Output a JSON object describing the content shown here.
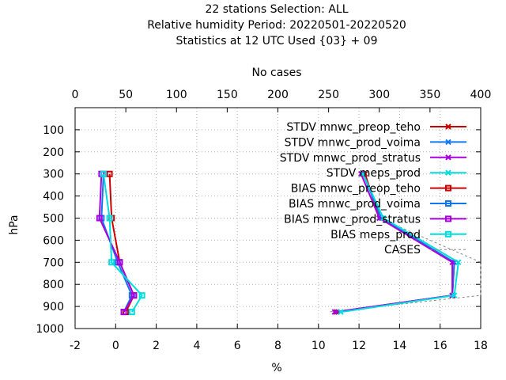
{
  "chart_data": {
    "type": "line",
    "title_lines": [
      "22 stations Selection: ALL",
      "Relative humidity  Period: 20220501-20220520",
      "Statistics at 12 UTC  Used {03} + 09"
    ],
    "xlabel": "%",
    "ylabel": "hPa",
    "x2label": "No cases",
    "xlim": [
      -2,
      18
    ],
    "xticks": [
      "-2",
      "0",
      "2",
      "4",
      "6",
      "8",
      "10",
      "12",
      "14",
      "16",
      "18"
    ],
    "ylim": [
      1000,
      0
    ],
    "yticks": [
      "100",
      "200",
      "300",
      "400",
      "500",
      "600",
      "700",
      "800",
      "900",
      "1000"
    ],
    "x2lim": [
      0,
      400
    ],
    "x2ticks": [
      "0",
      "50",
      "100",
      "150",
      "200",
      "250",
      "300",
      "350",
      "400"
    ],
    "grid": true,
    "legend_position": "top-right",
    "levels": [
      300,
      500,
      700,
      850,
      925
    ],
    "series": [
      {
        "name": "STDV mnwc_preop_teho",
        "color": "#cc0000",
        "marker": "x",
        "values": [
          12.3,
          13.0,
          16.7,
          16.6,
          10.9
        ]
      },
      {
        "name": "STDV mnwc_prod_voima",
        "color": "#1177ee",
        "marker": "x",
        "values": [
          12.2,
          13.1,
          16.7,
          16.6,
          10.8
        ]
      },
      {
        "name": "STDV mnwc_prod_stratus",
        "color": "#aa00dd",
        "marker": "x",
        "values": [
          12.1,
          13.0,
          16.6,
          16.6,
          10.8
        ]
      },
      {
        "name": "STDV meps_prod",
        "color": "#00dddd",
        "marker": "x",
        "values": [
          12.2,
          13.2,
          16.9,
          16.7,
          11.1
        ]
      },
      {
        "name": "BIAS mnwc_preop_teho",
        "color": "#cc0000",
        "marker": "square",
        "values": [
          -0.3,
          -0.2,
          0.2,
          0.9,
          0.5
        ]
      },
      {
        "name": "BIAS mnwc_prod_voima",
        "color": "#1177ee",
        "marker": "square",
        "values": [
          -0.6,
          -0.7,
          0.1,
          0.8,
          0.4
        ]
      },
      {
        "name": "BIAS mnwc_prod_stratus",
        "color": "#aa00dd",
        "marker": "square",
        "values": [
          -0.7,
          -0.8,
          0.2,
          0.9,
          0.4
        ]
      },
      {
        "name": "BIAS meps_prod",
        "color": "#00dddd",
        "marker": "square",
        "values": [
          -0.6,
          -0.3,
          -0.2,
          1.3,
          0.8
        ]
      }
    ],
    "cases": {
      "name": "CASES",
      "color": "#888888",
      "levels": [
        300,
        500,
        700,
        850,
        925
      ],
      "values": [
        300,
        300,
        400,
        400,
        250
      ]
    }
  }
}
